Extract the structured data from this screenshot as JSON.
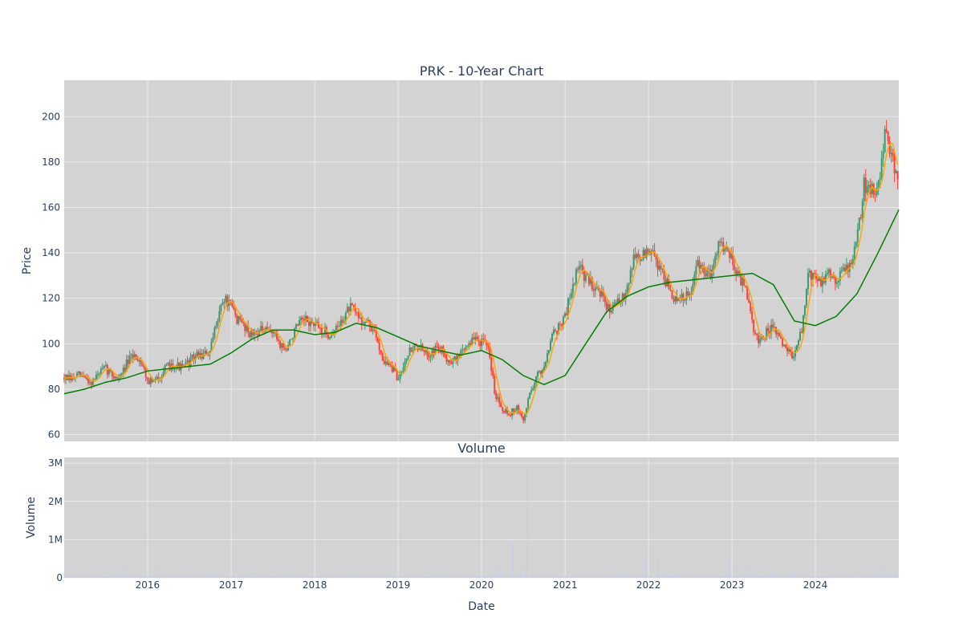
{
  "chart_data": [
    {
      "type": "candlestick",
      "title": "PRK - 10-Year Chart",
      "xlabel": "",
      "ylabel": "Price",
      "x_range": [
        "2015-01-01",
        "2024-12-31"
      ],
      "ylim": [
        57,
        216
      ],
      "y_ticks": [
        60,
        80,
        100,
        120,
        140,
        160,
        180,
        200
      ],
      "x_ticks": [
        "2016",
        "2017",
        "2018",
        "2019",
        "2020",
        "2021",
        "2022",
        "2023",
        "2024"
      ],
      "grid": true,
      "legend": "none",
      "colors": {
        "increasing": "#3d9970",
        "decreasing": "#ff4136",
        "short_ma": "#ffa500",
        "long_ma": "#008000",
        "plot_bg": "#d3d3d3",
        "grid": "#ebebeb"
      },
      "price_path": [
        [
          "2015-01-01",
          85
        ],
        [
          "2015-02-01",
          84
        ],
        [
          "2015-03-01",
          86
        ],
        [
          "2015-04-01",
          85
        ],
        [
          "2015-05-01",
          83
        ],
        [
          "2015-06-01",
          87
        ],
        [
          "2015-07-01",
          89
        ],
        [
          "2015-08-01",
          86
        ],
        [
          "2015-09-01",
          85
        ],
        [
          "2015-10-01",
          91
        ],
        [
          "2015-11-01",
          95
        ],
        [
          "2015-12-01",
          93
        ],
        [
          "2016-01-01",
          84
        ],
        [
          "2016-02-01",
          83
        ],
        [
          "2016-03-01",
          87
        ],
        [
          "2016-04-01",
          90
        ],
        [
          "2016-05-01",
          91
        ],
        [
          "2016-06-01",
          89
        ],
        [
          "2016-07-01",
          92
        ],
        [
          "2016-08-01",
          95
        ],
        [
          "2016-09-01",
          95
        ],
        [
          "2016-10-01",
          96
        ],
        [
          "2016-11-01",
          112
        ],
        [
          "2016-12-01",
          120
        ],
        [
          "2017-01-01",
          116
        ],
        [
          "2017-02-01",
          110
        ],
        [
          "2017-03-01",
          108
        ],
        [
          "2017-04-01",
          104
        ],
        [
          "2017-05-01",
          106
        ],
        [
          "2017-06-01",
          105
        ],
        [
          "2017-07-01",
          106
        ],
        [
          "2017-08-01",
          100
        ],
        [
          "2017-09-01",
          97
        ],
        [
          "2017-10-01",
          105
        ],
        [
          "2017-11-01",
          109
        ],
        [
          "2017-12-01",
          110
        ],
        [
          "2018-01-01",
          108
        ],
        [
          "2018-02-01",
          106
        ],
        [
          "2018-03-01",
          104
        ],
        [
          "2018-04-01",
          106
        ],
        [
          "2018-05-01",
          110
        ],
        [
          "2018-06-01",
          116
        ],
        [
          "2018-07-01",
          113
        ],
        [
          "2018-08-01",
          110
        ],
        [
          "2018-09-01",
          108
        ],
        [
          "2018-10-01",
          102
        ],
        [
          "2018-11-01",
          92
        ],
        [
          "2018-12-01",
          90
        ],
        [
          "2019-01-01",
          84
        ],
        [
          "2019-02-01",
          94
        ],
        [
          "2019-03-01",
          98
        ],
        [
          "2019-04-01",
          99
        ],
        [
          "2019-05-01",
          95
        ],
        [
          "2019-06-01",
          97
        ],
        [
          "2019-07-01",
          98
        ],
        [
          "2019-08-01",
          94
        ],
        [
          "2019-09-01",
          92
        ],
        [
          "2019-10-01",
          96
        ],
        [
          "2019-11-01",
          100
        ],
        [
          "2019-12-01",
          102
        ],
        [
          "2020-01-01",
          101
        ],
        [
          "2020-02-01",
          97
        ],
        [
          "2020-03-01",
          78
        ],
        [
          "2020-04-01",
          72
        ],
        [
          "2020-05-01",
          69
        ],
        [
          "2020-06-01",
          72
        ],
        [
          "2020-07-01",
          66
        ],
        [
          "2020-08-01",
          79
        ],
        [
          "2020-09-01",
          86
        ],
        [
          "2020-10-01",
          90
        ],
        [
          "2020-11-01",
          104
        ],
        [
          "2020-12-01",
          107
        ],
        [
          "2021-01-01",
          112
        ],
        [
          "2021-02-01",
          126
        ],
        [
          "2021-03-01",
          134
        ],
        [
          "2021-04-01",
          129
        ],
        [
          "2021-05-01",
          126
        ],
        [
          "2021-06-01",
          124
        ],
        [
          "2021-07-01",
          115
        ],
        [
          "2021-08-01",
          118
        ],
        [
          "2021-09-01",
          117
        ],
        [
          "2021-10-01",
          127
        ],
        [
          "2021-11-01",
          139
        ],
        [
          "2021-12-01",
          138
        ],
        [
          "2022-01-01",
          141
        ],
        [
          "2022-02-01",
          137
        ],
        [
          "2022-03-01",
          132
        ],
        [
          "2022-04-01",
          124
        ],
        [
          "2022-05-01",
          118
        ],
        [
          "2022-06-01",
          120
        ],
        [
          "2022-07-01",
          121
        ],
        [
          "2022-08-01",
          135
        ],
        [
          "2022-09-01",
          131
        ],
        [
          "2022-10-01",
          131
        ],
        [
          "2022-11-01",
          145
        ],
        [
          "2022-12-01",
          143
        ],
        [
          "2023-01-01",
          138
        ],
        [
          "2023-02-01",
          129
        ],
        [
          "2023-03-01",
          124
        ],
        [
          "2023-04-01",
          108
        ],
        [
          "2023-05-01",
          100
        ],
        [
          "2023-06-01",
          105
        ],
        [
          "2023-07-01",
          107
        ],
        [
          "2023-08-01",
          101
        ],
        [
          "2023-09-01",
          97
        ],
        [
          "2023-10-01",
          95
        ],
        [
          "2023-11-01",
          105
        ],
        [
          "2023-12-01",
          131
        ],
        [
          "2024-01-01",
          129
        ],
        [
          "2024-02-01",
          127
        ],
        [
          "2024-03-01",
          131
        ],
        [
          "2024-04-01",
          129
        ],
        [
          "2024-05-01",
          132
        ],
        [
          "2024-06-01",
          135
        ],
        [
          "2024-07-01",
          145
        ],
        [
          "2024-08-01",
          170
        ],
        [
          "2024-09-01",
          168
        ],
        [
          "2024-10-01",
          170
        ],
        [
          "2024-11-01",
          192
        ],
        [
          "2024-12-01",
          180
        ],
        [
          "2024-12-31",
          175
        ]
      ],
      "long_ma": [
        [
          "2015-01-01",
          78
        ],
        [
          "2015-04-01",
          80
        ],
        [
          "2015-07-01",
          83
        ],
        [
          "2015-10-01",
          85
        ],
        [
          "2016-01-01",
          88
        ],
        [
          "2016-07-01",
          90
        ],
        [
          "2016-10-01",
          91
        ],
        [
          "2017-01-01",
          96
        ],
        [
          "2017-04-01",
          102
        ],
        [
          "2017-07-01",
          106
        ],
        [
          "2017-10-01",
          106
        ],
        [
          "2018-01-01",
          104
        ],
        [
          "2018-04-01",
          105
        ],
        [
          "2018-07-01",
          109
        ],
        [
          "2018-10-01",
          107
        ],
        [
          "2019-01-01",
          103
        ],
        [
          "2019-04-01",
          99
        ],
        [
          "2019-07-01",
          97
        ],
        [
          "2019-10-01",
          95
        ],
        [
          "2020-01-01",
          97
        ],
        [
          "2020-04-01",
          93
        ],
        [
          "2020-07-01",
          86
        ],
        [
          "2020-10-01",
          82
        ],
        [
          "2021-01-01",
          86
        ],
        [
          "2021-04-01",
          100
        ],
        [
          "2021-07-01",
          114
        ],
        [
          "2021-10-01",
          121
        ],
        [
          "2022-01-01",
          125
        ],
        [
          "2022-04-01",
          127
        ],
        [
          "2022-07-01",
          128
        ],
        [
          "2022-10-01",
          129
        ],
        [
          "2023-01-01",
          130
        ],
        [
          "2023-04-01",
          131
        ],
        [
          "2023-07-01",
          126
        ],
        [
          "2023-10-01",
          110
        ],
        [
          "2024-01-01",
          108
        ],
        [
          "2024-04-01",
          112
        ],
        [
          "2024-07-01",
          122
        ],
        [
          "2024-10-01",
          140
        ],
        [
          "2024-12-31",
          159
        ]
      ]
    },
    {
      "type": "bar",
      "title": "Volume",
      "xlabel": "Date",
      "ylabel": "Volume",
      "x_range": [
        "2015-01-01",
        "2024-12-31"
      ],
      "ylim": [
        0,
        3150000
      ],
      "y_ticks": [
        0,
        1000000,
        2000000,
        3000000
      ],
      "y_tick_labels": [
        "0",
        "1M",
        "2M",
        "3M"
      ],
      "x_ticks": [
        "2016",
        "2017",
        "2018",
        "2019",
        "2020",
        "2021",
        "2022",
        "2023",
        "2024"
      ],
      "grid": true,
      "colors": {
        "bar": "#c8cde8",
        "plot_bg": "#d3d3d3",
        "grid": "#ebebeb"
      },
      "base_volume": 30000,
      "spikes": [
        [
          "2015-09-20",
          280000
        ],
        [
          "2016-02-15",
          320000
        ],
        [
          "2016-06-10",
          120000
        ],
        [
          "2016-09-15",
          180000
        ],
        [
          "2017-03-15",
          110000
        ],
        [
          "2018-12-10",
          80000
        ],
        [
          "2020-03-20",
          250000
        ],
        [
          "2020-05-15",
          980000
        ],
        [
          "2020-06-20",
          220000
        ],
        [
          "2020-07-20",
          2950000
        ],
        [
          "2020-08-10",
          160000
        ],
        [
          "2021-09-20",
          150000
        ],
        [
          "2021-12-20",
          480000
        ],
        [
          "2022-02-10",
          470000
        ],
        [
          "2022-09-15",
          120000
        ],
        [
          "2022-12-20",
          470000
        ],
        [
          "2023-01-20",
          430000
        ],
        [
          "2023-03-20",
          280000
        ],
        [
          "2023-06-20",
          150000
        ],
        [
          "2023-09-20",
          200000
        ],
        [
          "2024-06-25",
          170000
        ],
        [
          "2024-10-15",
          250000
        ],
        [
          "2024-11-15",
          200000
        ],
        [
          "2024-12-15",
          170000
        ]
      ]
    }
  ]
}
